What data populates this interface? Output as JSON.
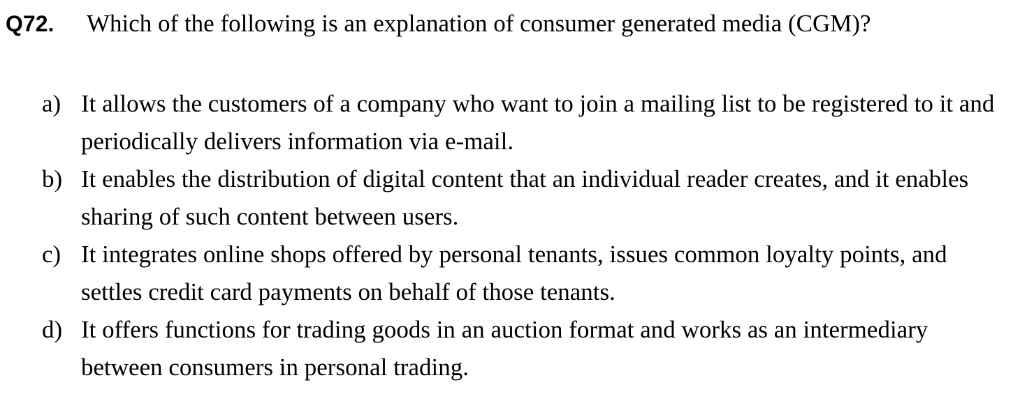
{
  "question": {
    "number": "Q72.",
    "text": "Which of the following is an explanation of consumer generated media (CGM)?"
  },
  "options": [
    {
      "letter": "a)",
      "text": "It allows the customers of a company who want to join a mailing list to be registered to it and periodically delivers information via e-mail."
    },
    {
      "letter": "b)",
      "text": "It enables the distribution of digital content that an individual reader creates, and it enables sharing of such content between users."
    },
    {
      "letter": "c)",
      "text": "It integrates online shops offered by personal tenants, issues common loyalty points, and settles credit card payments on behalf of those tenants."
    },
    {
      "letter": "d)",
      "text": "It offers functions for trading goods in an auction format and works as an intermediary between consumers in personal trading."
    }
  ]
}
